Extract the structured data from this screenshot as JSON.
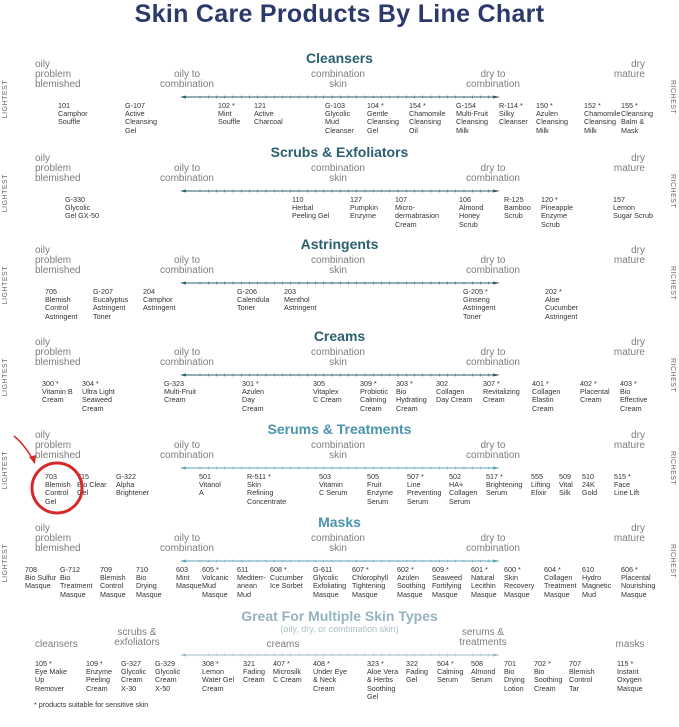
{
  "title": "Skin Care Products By Line Chart",
  "axis_left": "LIGHTEST",
  "axis_right": "RICHEST",
  "colors": {
    "title": "#2b3a6b",
    "dark_section": "#2a5f70",
    "light_section": "#4a95ad",
    "pale_section": "#94b3be",
    "highlight": "#d42a2a"
  },
  "skin_zones": [
    "oily\nproblem\nblemished",
    "oily to\ncombination",
    "combination\nskin",
    "dry to\ncombination",
    "dry\nmature"
  ],
  "sections": [
    {
      "title": "Cleansers",
      "items": [
        "101\nCamphor\nSouffle",
        "G-107\nActive\nCleansing\nGel",
        "102 *\nMint\nSouffle",
        "121\nActive\nCharcoal",
        "G-103\nGlycolic\nMud\nCleanser",
        "104 *\nGentle\nCleansing\nGel",
        "154 *\nChamomile\nCleansing\nOil",
        "G-154\nMulti-Fruit\nCleansing\nMilk",
        "R-114 *\nSilky\nCleanser",
        "150 *\nAzulen\nCleansing\nMilk",
        "152 *\nChamomile\nCleansing\nMilk",
        "155 *\nCleansing\nBalm &\nMask"
      ]
    },
    {
      "title": "Scrubs & Exfoliators",
      "items": [
        "G-330\nGlycolic\nGel GX-50",
        "110\nHerbal\nPeeling Gel",
        "127\nPumpkin\nEnzyme",
        "107\nMicro-\ndermabrasion\nCream",
        "106\nAlmond\nHoney\nScrub",
        "R-125\nBamboo\nScrub",
        "120 *\nPineapple\nEnzyme\nScrub",
        "157\nLemon\nSugar Scrub"
      ]
    },
    {
      "title": "Astringents",
      "items": [
        "705\nBlemish\nControl\nAstringent",
        "G-207\nEucalyptus\nAstringent\nToner",
        "204\nCamphor\nAstringent",
        "G-206\nCalendula\nToner",
        "203\nMenthol\nAstringent",
        "G-205 *\nGinseng\nAstringent\nToner",
        "202 *\nAloe\nCucumber\nAstringent"
      ]
    },
    {
      "title": "Creams",
      "items": [
        "300 *\nVitamin B\nCream",
        "304 *\nUltra Light\nSeaweed\nCream",
        "G-323\nMulti-Fruit\nCream",
        "301 *\nAzulen\nDay\nCream",
        "305\nVitaplex\nC Cream",
        "309 *\nProbiotic\nCalming\nCream",
        "303 *\nBio\nHydrating\nCream",
        "302\nCollagen\nDay Cream",
        "307 *\nRevitalizing\nCream",
        "401 *\nCollagen\nElastin\nCream",
        "402 *\nPlacental\nCream",
        "403 *\nBio\nEffective\nCream"
      ]
    },
    {
      "title": "Serums & Treatments",
      "items": [
        "703\nBlemish\nControl\nGel",
        "715\nBio Clear\nGel",
        "G-322\nAlpha\nBrightener",
        "501\nVitanol\nA",
        "R-511 *\nSkin\nRefining\nConcentrate",
        "503\nVitamin\nC Serum",
        "505\nFruit\nEnzyme\nSerum",
        "507 *\nLine\nPreventing\nSerum",
        "502\nHA+\nCollagen\nSerum",
        "517 *\nBrightening\nSerum",
        "555\nLifting\nElixir",
        "509\nVital\nSilk",
        "510\n24K\nGold",
        "515 *\nFace\nLine Lift"
      ]
    },
    {
      "title": "Masks",
      "items": [
        "708\nBio Sulfur\nMasque",
        "G-712\nBio\nTreatment\nMasque",
        "709\nBlemish\nControl\nMasque",
        "710\nBio\nDrying\nMasque",
        "603\nMint\nMasque",
        "605 *\nVolcanic\nMud\nMasque",
        "611\nMediterr-\nanean\nMud",
        "608 *\nCucumber\nIce Sorbet",
        "G-611\nGlycolic\nExfoliating\nMasque",
        "607 *\nChlorophyll\nTightening\nMasque",
        "602 *\nAzulen\nSoothing\nMasque",
        "609 *\nSeaweed\nFortifying\nMasque",
        "601 *\nNatural\nLecithin\nMasque",
        "600 *\nSkin\nRecovery\nMasque",
        "604 *\nCollagen\nTreatment\nMasque",
        "610\nHydro\nMagnetic\nMud",
        "606 *\nPlacental\nNourishing\nMasque"
      ]
    },
    {
      "title": "Great For Multiple Skin Types",
      "subtitle": "(oily, dry, or combination skin)",
      "zones": [
        "cleansers",
        "scrubs &\nexfoliators",
        "creams",
        "serums &\ntreatments",
        "masks"
      ],
      "items": [
        "105 *\nEye Make\nUp\nRemover",
        "109 *\nEnzyme\nPeeling\nCream",
        "G-327\nGlycolic\nCream\nX-30",
        "G-329\nGlycolic\nCream\nX-50",
        "308 *\nLemon\nWater Gel\nCream",
        "321\nFading\nCream",
        "407 *\nMicrosilk\nC Cream",
        "408 *\nUnder Eye\n& Neck\nCream",
        "323 *\nAloe Vera\n& Herbs\nSoothing\nGel",
        "322\nFading\nGel",
        "504 *\nCalming\nSerum",
        "508\nAlmond\nSerum",
        "701\nBio\nDrying\nLotion",
        "702 *\nBio\nSoothing\nCream",
        "707\nBlemish\nControl\nTar",
        "115 *\nInstant\nOxygen\nMasque"
      ]
    }
  ],
  "footnote": "* products suitable for sensitive skin"
}
